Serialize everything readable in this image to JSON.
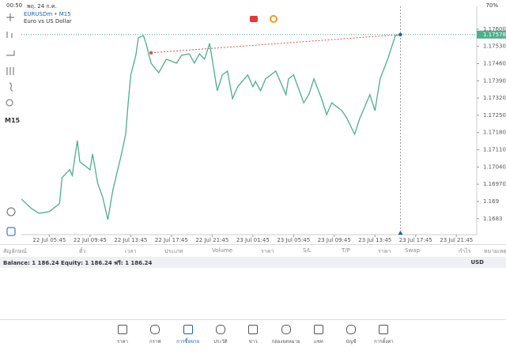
{
  "status": {
    "time": "00:50",
    "date": "พฤ. 24 ก.ค.",
    "battery": "70%"
  },
  "symbol_header": {
    "symbol": "EURUSDm • M15",
    "description": "Euro vs US Dollar"
  },
  "timeframe": "M15",
  "chart_data": {
    "type": "line",
    "x": [
      -11,
      -7,
      -4,
      0,
      4,
      5,
      8,
      9,
      11,
      12,
      16,
      17,
      19,
      21,
      23,
      25,
      28,
      30,
      31,
      32,
      34,
      35,
      37,
      38,
      40,
      43,
      46,
      50,
      52,
      55,
      57,
      59,
      61,
      63,
      65,
      66,
      68,
      70,
      72,
      74,
      78,
      80,
      81,
      83,
      85,
      89,
      93,
      94,
      96,
      100,
      102,
      104,
      107,
      109,
      111,
      115,
      117,
      120,
      122,
      126,
      128,
      130,
      133,
      136,
      138
    ],
    "series": [
      {
        "name": "EURUSDm",
        "color": "#4caf8a",
        "values": [
          1.1691,
          1.16871,
          1.16852,
          1.16859,
          1.16891,
          1.16997,
          1.17029,
          1.17006,
          1.17147,
          1.17061,
          1.17029,
          1.17093,
          1.16974,
          1.16916,
          1.16826,
          1.16948,
          1.17077,
          1.17173,
          1.17301,
          1.17414,
          1.17494,
          1.17565,
          1.17574,
          1.17542,
          1.17462,
          1.17423,
          1.17478,
          1.17462,
          1.17494,
          1.175,
          1.17462,
          1.175,
          1.17478,
          1.17542,
          1.17414,
          1.1735,
          1.17414,
          1.1743,
          1.17318,
          1.17366,
          1.17414,
          1.17366,
          1.17388,
          1.1735,
          1.17398,
          1.1743,
          1.17334,
          1.17398,
          1.17414,
          1.17301,
          1.17334,
          1.17398,
          1.17318,
          1.17253,
          1.17301,
          1.17269,
          1.17237,
          1.17173,
          1.17237,
          1.17334,
          1.17269,
          1.17398,
          1.17478,
          1.17574,
          1.17578
        ]
      }
    ],
    "trade_line": {
      "x": [
        40,
        138
      ],
      "values": [
        1.17504,
        1.17578
      ]
    },
    "current_price": 1.17578,
    "xlim": [
      -11,
      168
    ],
    "ylim": [
      1.16765,
      1.1768
    ],
    "xticks": [
      {
        "value": 0,
        "label": "22 Jul 05:45"
      },
      {
        "value": 16,
        "label": "22 Jul 09:45"
      },
      {
        "value": 32,
        "label": "22 Jul 13:45"
      },
      {
        "value": 48,
        "label": "22 Jul 17:45"
      },
      {
        "value": 64,
        "label": "22 Jul 21:45"
      },
      {
        "value": 80,
        "label": "23 Jul 01:45"
      },
      {
        "value": 96,
        "label": "23 Jul 05:45"
      },
      {
        "value": 112,
        "label": "23 Jul 09:45"
      },
      {
        "value": 128,
        "label": "23 Jul 13:45"
      },
      {
        "value": 144,
        "label": "23 Jul 17:45"
      },
      {
        "value": 160,
        "label": "23 Jul 21:45"
      }
    ],
    "yticks": [
      {
        "value": 1.176,
        "label": "1.17600"
      },
      {
        "value": 1.1753,
        "label": "1.17530"
      },
      {
        "value": 1.1746,
        "label": "1.17460"
      },
      {
        "value": 1.1739,
        "label": "1.17390"
      },
      {
        "value": 1.1732,
        "label": "1.17320"
      },
      {
        "value": 1.1725,
        "label": "1.17250"
      },
      {
        "value": 1.1718,
        "label": "1.17180"
      },
      {
        "value": 1.1711,
        "label": "1.17110"
      },
      {
        "value": 1.1704,
        "label": "1.17040"
      },
      {
        "value": 1.1697,
        "label": "1.16970"
      },
      1.169,
      1.1683
    ]
  },
  "table": {
    "headers": [
      "สัญลักษณ์",
      "ตั๋ว",
      "เวลา",
      "ประเภท",
      "Volume",
      "ราคา",
      "S/L",
      "T/P",
      "ราคา",
      "Swap",
      "กำไร",
      "หมายเหตุ"
    ]
  },
  "balance": {
    "text": "Balance: 1 186.24 Equity: 1 186.24 ฟรี: 1 186.24",
    "currency": "USD"
  },
  "tabs": [
    "ราคา",
    "กราฟ",
    "การซื้อขาย",
    "ประวัติ",
    "ข่าว",
    "กล่องจดหมาย",
    "แชท",
    "บัญชี",
    "การตั้งค่า"
  ]
}
